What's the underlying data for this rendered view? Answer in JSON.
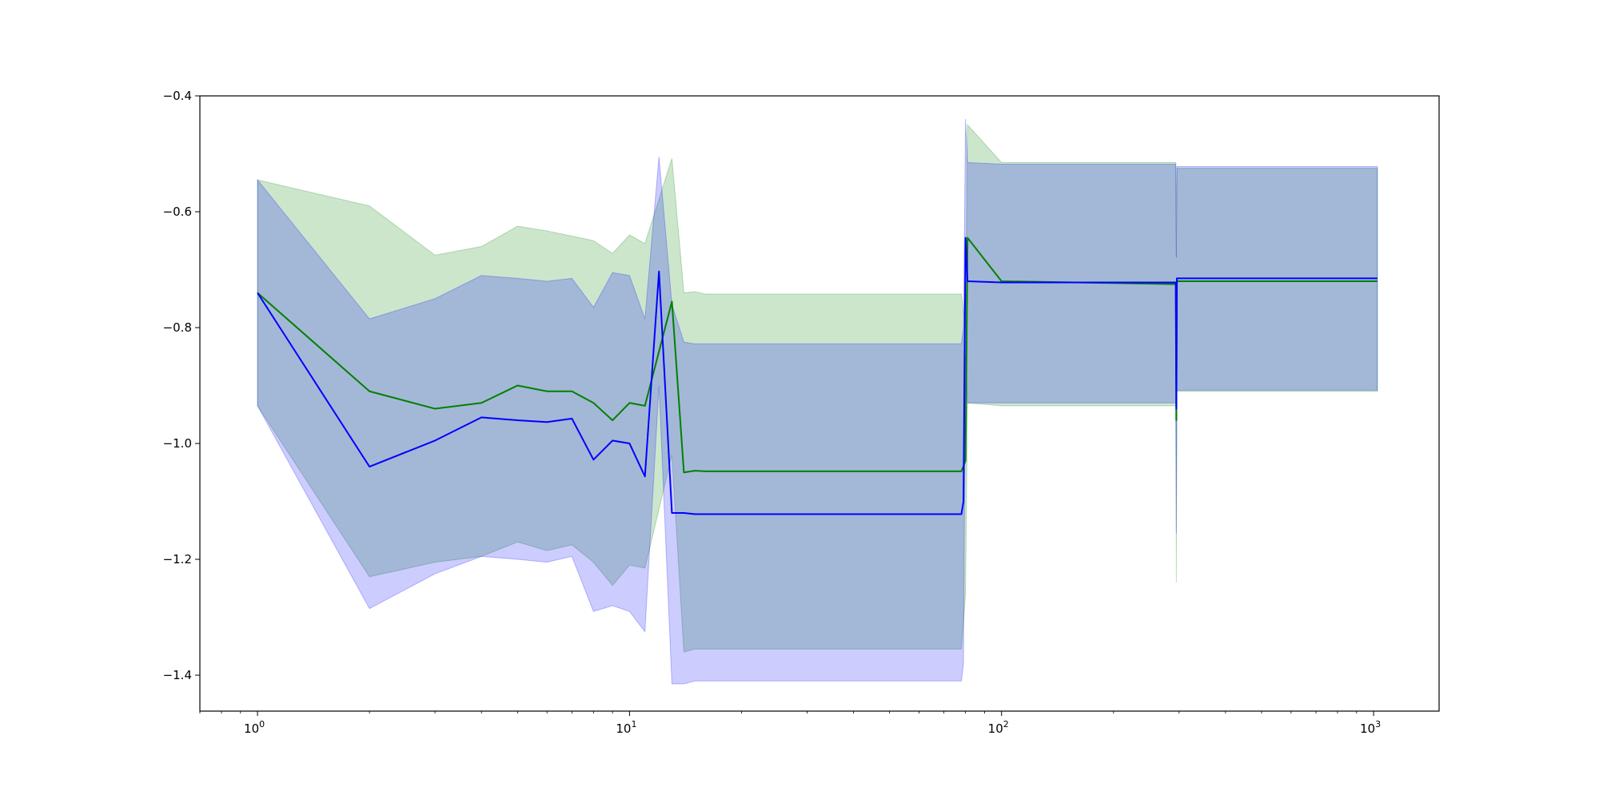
{
  "chart_data": {
    "type": "line",
    "title": "",
    "xlabel": "",
    "ylabel": "",
    "xscale": "log",
    "xlim": [
      0.7,
      1500
    ],
    "ylim": [
      -1.462,
      -0.4
    ],
    "grid": false,
    "legend": null,
    "x_ticks": [
      {
        "value": 1,
        "base": "10",
        "exp": "0"
      },
      {
        "value": 10,
        "base": "10",
        "exp": "1"
      },
      {
        "value": 100,
        "base": "10",
        "exp": "2"
      },
      {
        "value": 1000,
        "base": "10",
        "exp": "3"
      }
    ],
    "y_ticks": [
      {
        "value": -0.4,
        "label": "−0.4"
      },
      {
        "value": -0.6,
        "label": "−0.6"
      },
      {
        "value": -0.8,
        "label": "−0.8"
      },
      {
        "value": -1.0,
        "label": "−1.0"
      },
      {
        "value": -1.2,
        "label": "−1.2"
      },
      {
        "value": -1.4,
        "label": "−1.4"
      }
    ],
    "series": [
      {
        "color": "#008000",
        "band_color": "#008000",
        "band_opacity": 0.2,
        "x": [
          1,
          2,
          3,
          4,
          5,
          6,
          7,
          8,
          9,
          10,
          11,
          13,
          14,
          15,
          16,
          78,
          80,
          81,
          100,
          294,
          295,
          296,
          1024
        ],
        "y": [
          -0.74,
          -0.91,
          -0.94,
          -0.93,
          -0.9,
          -0.91,
          -0.91,
          -0.93,
          -0.96,
          -0.93,
          -0.935,
          -0.755,
          -1.05,
          -1.047,
          -1.048,
          -1.048,
          -1.03,
          -0.645,
          -0.72,
          -0.725,
          -0.96,
          -0.72,
          -0.72
        ],
        "upper": [
          -0.545,
          -0.59,
          -0.675,
          -0.66,
          -0.625,
          -0.633,
          -0.642,
          -0.65,
          -0.672,
          -0.64,
          -0.655,
          -0.508,
          -0.74,
          -0.738,
          -0.742,
          -0.742,
          -0.8,
          -0.45,
          -0.515,
          -0.515,
          -0.68,
          -0.525,
          -0.525
        ],
        "lower": [
          -0.935,
          -1.23,
          -1.205,
          -1.195,
          -1.17,
          -1.185,
          -1.175,
          -1.205,
          -1.245,
          -1.21,
          -1.215,
          -1.02,
          -1.36,
          -1.355,
          -1.355,
          -1.355,
          -1.26,
          -0.93,
          -0.935,
          -0.935,
          -1.24,
          -0.91,
          -0.91
        ]
      },
      {
        "color": "#0000ff",
        "band_color": "#0000ff",
        "band_opacity": 0.2,
        "x": [
          1,
          2,
          3,
          4,
          5,
          6,
          7,
          8,
          9,
          10,
          11,
          12,
          13,
          14,
          15,
          16,
          78,
          79,
          80,
          81,
          100,
          294,
          295,
          296,
          1024
        ],
        "y": [
          -0.74,
          -1.04,
          -0.995,
          -0.955,
          -0.96,
          -0.963,
          -0.957,
          -1.028,
          -0.995,
          -1.0,
          -1.057,
          -0.703,
          -1.12,
          -1.12,
          -1.122,
          -1.122,
          -1.122,
          -1.1,
          -0.645,
          -0.72,
          -0.722,
          -0.722,
          -0.94,
          -0.715,
          -0.715
        ],
        "upper": [
          -0.545,
          -0.785,
          -0.75,
          -0.71,
          -0.715,
          -0.72,
          -0.715,
          -0.765,
          -0.705,
          -0.71,
          -0.785,
          -0.505,
          -0.76,
          -0.825,
          -0.828,
          -0.828,
          -0.828,
          -0.8,
          -0.44,
          -0.515,
          -0.518,
          -0.518,
          -0.678,
          -0.522,
          -0.522
        ],
        "lower": [
          -0.935,
          -1.285,
          -1.225,
          -1.195,
          -1.2,
          -1.205,
          -1.195,
          -1.29,
          -1.28,
          -1.29,
          -1.325,
          -0.9,
          -1.415,
          -1.415,
          -1.41,
          -1.41,
          -1.41,
          -1.38,
          -0.85,
          -0.93,
          -0.93,
          -0.93,
          -1.155,
          -0.908,
          -0.908
        ]
      }
    ]
  }
}
